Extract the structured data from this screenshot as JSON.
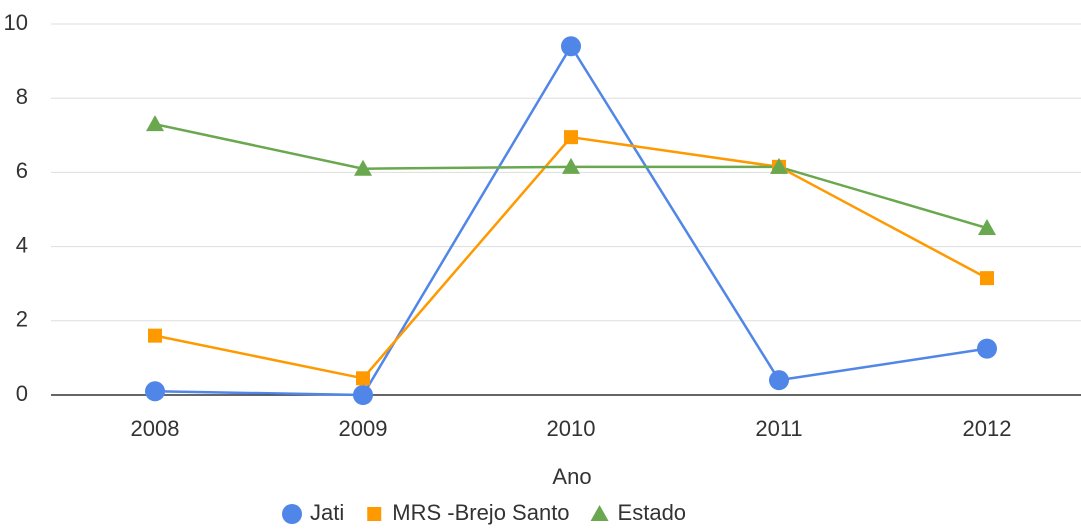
{
  "chart_data": {
    "type": "line",
    "x_label": "Ano",
    "categories": [
      "2008",
      "2009",
      "2010",
      "2011",
      "2012"
    ],
    "series": [
      {
        "name": "Jati",
        "color": "#4f86e8",
        "marker": "circle",
        "values": [
          0.1,
          0,
          9.4,
          0.4,
          1.25
        ]
      },
      {
        "name": "MRS -Brejo Santo",
        "color": "#ff9900",
        "marker": "square",
        "values": [
          1.6,
          0.45,
          6.95,
          6.15,
          3.15
        ]
      },
      {
        "name": "Estado",
        "color": "#6aa84f",
        "marker": "triangle",
        "values": [
          7.3,
          6.1,
          6.15,
          6.15,
          4.5
        ]
      }
    ],
    "ylim": [
      0,
      10
    ],
    "yticks": [
      0,
      2,
      4,
      6,
      8,
      10
    ],
    "grid": true,
    "legend": "bottom"
  }
}
